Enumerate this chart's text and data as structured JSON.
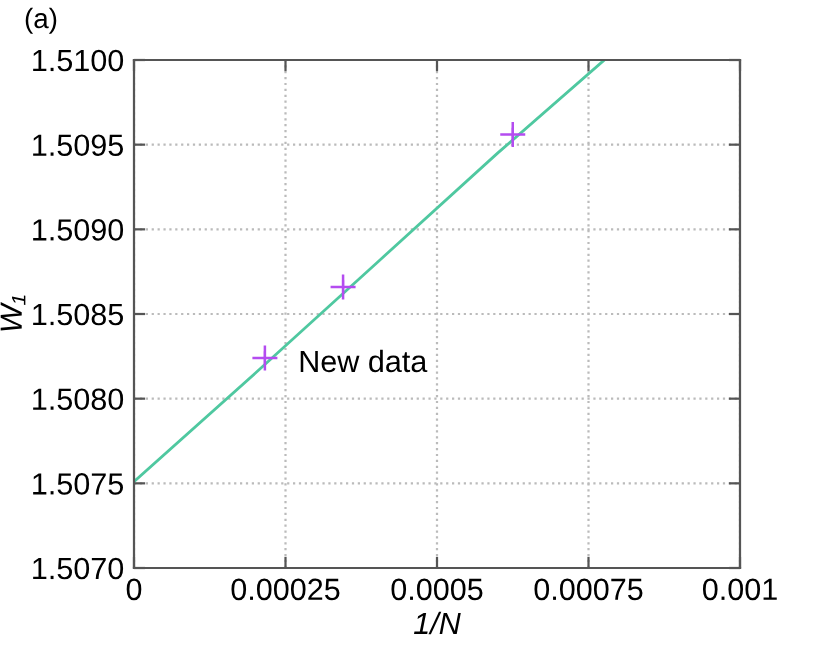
{
  "chart_data": {
    "type": "scatter",
    "xlabel": "1/N",
    "ylabel": "W₁",
    "annotations": [
      "(a)",
      {
        "text": "New data",
        "x": 0.000216,
        "y": 1.50824
      }
    ],
    "series": [
      {
        "color": "#b44cf0",
        "marker": "cross",
        "x": [
          0.000216,
          0.000345,
          0.000625
        ],
        "values": [
          1.50824,
          1.50866,
          1.50956
        ],
        "errors": [
          4e-05,
          4e-05,
          4e-05
        ]
      },
      {
        "type": "line",
        "color": "#4fc8a0",
        "marker": "none",
        "x": [
          0,
          0.0002,
          0.0004,
          0.0006,
          0.000776
        ],
        "values": [
          1.50751,
          1.50815,
          1.5088,
          1.50945,
          1.51
        ]
      }
    ],
    "xlim": [
      0,
      0.001
    ],
    "xticks": [
      0,
      0.00025,
      0.0005,
      0.00075,
      0.001
    ],
    "ylim": [
      1.507,
      1.51
    ],
    "yticks": [
      {
        "value": 1.507,
        "label": "1.5070"
      },
      {
        "value": 1.5075,
        "label": "1.5075"
      },
      {
        "value": 1.508,
        "label": "1.5080"
      },
      {
        "value": 1.5085,
        "label": "1.5085"
      },
      {
        "value": 1.509,
        "label": "1.5090"
      },
      {
        "value": 1.5095,
        "label": "1.5095"
      },
      {
        "value": 1.51,
        "label": "1.5100"
      }
    ],
    "grid": true
  }
}
